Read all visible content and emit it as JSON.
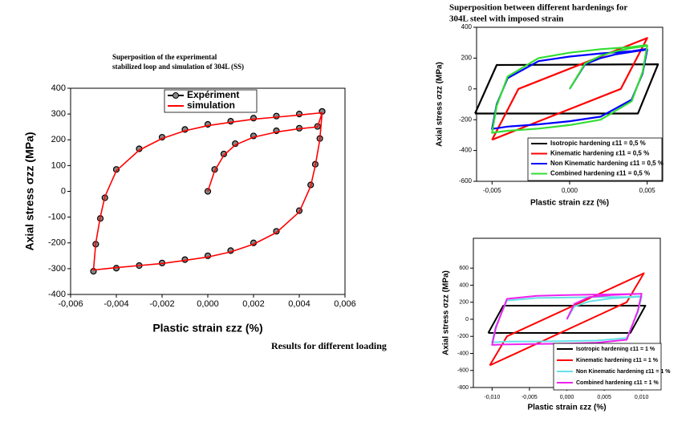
{
  "chart_data": [
    {
      "type": "line",
      "title": [
        "Superposition of the experimental",
        "stabilized loop and simulation of 304L (SS)"
      ],
      "x_label": "Plastic strain εzz (%)",
      "y_label": "Axial stress σzz (MPa)",
      "annotation": "Results for different loading",
      "xlim": [
        -0.006,
        0.006
      ],
      "ylim": [
        -400,
        400
      ],
      "xticks": [
        {
          "value": -0.006,
          "label": "-0,006"
        },
        {
          "value": -0.004,
          "label": "-0,004"
        },
        {
          "value": -0.002,
          "label": "-0,002"
        },
        {
          "value": 0,
          "label": "0,000"
        },
        {
          "value": 0.002,
          "label": "0,002"
        },
        {
          "value": 0.004,
          "label": "0,004"
        },
        {
          "value": 0.006,
          "label": "0,006"
        }
      ],
      "yticks": [
        -400,
        -300,
        -200,
        -100,
        0,
        100,
        200,
        300,
        400
      ],
      "legend": "upper center",
      "series": [
        {
          "name": "Expériment",
          "color": "#000000",
          "marker": "circle",
          "x": [
            0,
            0.0003,
            0.0007,
            0.0012,
            0.002,
            0.003,
            0.004,
            0.0048,
            0.005,
            0.0049,
            0.0047,
            0.0045,
            0.004,
            0.003,
            0.002,
            0.001,
            0,
            -0.001,
            -0.002,
            -0.003,
            -0.004,
            -0.005,
            -0.0049,
            -0.0047,
            -0.0045,
            -0.004,
            -0.003,
            -0.002,
            -0.001,
            0,
            0.001,
            0.002,
            0.003,
            0.004,
            0.005
          ],
          "values": [
            0,
            85,
            145,
            185,
            215,
            235,
            245,
            252,
            310,
            205,
            105,
            25,
            -75,
            -155,
            -200,
            -230,
            -250,
            -265,
            -278,
            -288,
            -298,
            -310,
            -205,
            -105,
            -25,
            85,
            165,
            210,
            240,
            260,
            272,
            284,
            292,
            300,
            310
          ]
        },
        {
          "name": "simulation",
          "color": "#ff0000",
          "x": [
            0,
            0.0003,
            0.0007,
            0.0012,
            0.002,
            0.003,
            0.004,
            0.0048,
            0.005,
            0.0049,
            0.0047,
            0.0045,
            0.004,
            0.003,
            0.002,
            0.001,
            0,
            -0.001,
            -0.002,
            -0.003,
            -0.004,
            -0.005,
            -0.0049,
            -0.0047,
            -0.0045,
            -0.004,
            -0.003,
            -0.002,
            -0.001,
            0,
            0.001,
            0.002,
            0.003,
            0.004,
            0.005
          ],
          "values": [
            0,
            80,
            140,
            180,
            210,
            230,
            243,
            250,
            305,
            200,
            100,
            20,
            -80,
            -160,
            -205,
            -235,
            -255,
            -268,
            -280,
            -288,
            -296,
            -305,
            -200,
            -100,
            -20,
            80,
            160,
            205,
            235,
            255,
            268,
            280,
            288,
            296,
            305
          ]
        }
      ]
    },
    {
      "type": "line",
      "title": [
        "Superposition between different hardenings for",
        "304L steel with imposed strain"
      ],
      "x_label": "Plastic strain εzz (%)",
      "y_label": "Axial stress σzz (MPa)",
      "xlim": [
        -0.006,
        0.006
      ],
      "ylim": [
        -600,
        400
      ],
      "xticks": [
        {
          "value": -0.005,
          "label": "-0,005"
        },
        {
          "value": 0,
          "label": "0,000"
        },
        {
          "value": 0.005,
          "label": "0,005"
        }
      ],
      "yticks": [
        -600,
        -400,
        -200,
        0,
        200,
        400
      ],
      "legend": "lower right",
      "series": [
        {
          "name": "Isotropic hardening   ε11 = 0,5 %",
          "color": "#000000",
          "x": [
            -0.0061,
            -0.0047,
            0.0057,
            0.0044,
            -0.0061
          ],
          "values": [
            -160,
            155,
            160,
            -160,
            -160
          ]
        },
        {
          "name": "Kinematic hardening   ε11 = 0,5 %",
          "color": "#ff0000",
          "x": [
            -0.005,
            0.0033,
            0.005,
            -0.0033,
            -0.005
          ],
          "values": [
            -330,
            0,
            330,
            0,
            -330
          ]
        },
        {
          "name": "Non Kinematic hardening  ε11 = 0,5 %",
          "color": "#0000ff",
          "x": [
            0,
            0.001,
            0.002,
            0.003,
            0.004,
            0.005,
            0.0047,
            0.004,
            0.002,
            0,
            -0.002,
            -0.004,
            -0.005,
            -0.0047,
            -0.004,
            -0.002,
            0,
            0.002,
            0.004,
            0.005
          ],
          "values": [
            0,
            160,
            200,
            225,
            240,
            255,
            100,
            -70,
            -180,
            -210,
            -230,
            -245,
            -260,
            -100,
            70,
            180,
            210,
            230,
            245,
            260
          ]
        },
        {
          "name": "Combined hardening  ε11 = 0,5 %",
          "color": "#33dd33",
          "x": [
            0,
            0.001,
            0.002,
            0.003,
            0.004,
            0.005,
            0.0047,
            0.004,
            0.002,
            0,
            -0.002,
            -0.004,
            -0.005,
            -0.0047,
            -0.004,
            -0.002,
            0,
            0.002,
            0.004,
            0.005
          ],
          "values": [
            0,
            165,
            215,
            245,
            265,
            280,
            110,
            -80,
            -200,
            -235,
            -258,
            -272,
            -285,
            -110,
            80,
            200,
            235,
            258,
            272,
            285
          ]
        }
      ]
    },
    {
      "type": "line",
      "x_label": "Plastic strain εzz (%)",
      "y_label": "Axial stress σzz (MPa)",
      "xlim": [
        -0.0125,
        0.0125
      ],
      "ylim": [
        -800,
        950
      ],
      "xticks": [
        {
          "value": -0.01,
          "label": "-0,010"
        },
        {
          "value": -0.005,
          "label": "-0,005"
        },
        {
          "value": 0,
          "label": "0,000"
        },
        {
          "value": 0.005,
          "label": "0,005"
        },
        {
          "value": 0.01,
          "label": "0,010"
        }
      ],
      "yticks": [
        -800,
        -600,
        -400,
        -200,
        0,
        200,
        400,
        600
      ],
      "legend": "lower right",
      "series": [
        {
          "name": "Isotropic hardening    ε11 = 1 %",
          "color": "#000000",
          "x": [
            -0.0105,
            -0.0085,
            0.0105,
            0.0085,
            -0.0105
          ],
          "values": [
            -160,
            160,
            160,
            -160,
            -160
          ]
        },
        {
          "name": "Kinematic hardening   ε11 = 1 %",
          "color": "#ff0000",
          "x": [
            -0.0103,
            -0.008,
            0.0103,
            0.008,
            -0.0103
          ],
          "values": [
            -540,
            -200,
            540,
            200,
            -540
          ]
        },
        {
          "name": "Non Kinematic hardening  ε11 = 1 %",
          "color": "#66e0e8",
          "x": [
            0,
            0.001,
            0.003,
            0.006,
            0.01,
            0.0095,
            0.008,
            0.004,
            0,
            -0.004,
            -0.008,
            -0.01,
            -0.0095,
            -0.008,
            -0.004,
            0,
            0.004,
            0.008,
            0.01
          ],
          "values": [
            0,
            150,
            210,
            245,
            265,
            80,
            -220,
            -250,
            -255,
            -260,
            -262,
            -270,
            -80,
            220,
            250,
            255,
            260,
            262,
            270
          ]
        },
        {
          "name": "Combined hardening  ε11 = 1 %",
          "color": "#ee22ee",
          "x": [
            0,
            0.001,
            0.003,
            0.006,
            0.01,
            0.0095,
            0.008,
            0.004,
            0,
            -0.004,
            -0.008,
            -0.01,
            -0.0095,
            -0.008,
            -0.004,
            0,
            0.004,
            0.008,
            0.01
          ],
          "values": [
            0,
            180,
            260,
            285,
            300,
            100,
            -240,
            -275,
            -285,
            -290,
            -295,
            -300,
            -100,
            240,
            275,
            285,
            290,
            295,
            300
          ]
        }
      ]
    }
  ]
}
